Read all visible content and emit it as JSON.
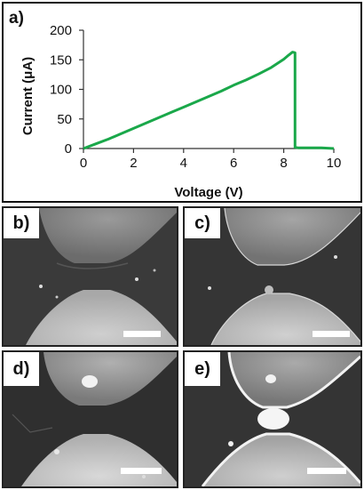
{
  "panels": {
    "a": "a)",
    "b": "b)",
    "c": "c)",
    "d": "d)",
    "e": "e)"
  },
  "chart_data": {
    "type": "line",
    "title": "",
    "xlabel": "Voltage (V)",
    "ylabel": "Current (μA)",
    "xlim": [
      0,
      10
    ],
    "ylim": [
      0,
      200
    ],
    "xticks": [
      0,
      2,
      4,
      6,
      8,
      10
    ],
    "yticks": [
      0,
      50,
      100,
      150,
      200
    ],
    "grid": false,
    "legend": "none",
    "series": [
      {
        "color": "#1aa84a",
        "x": [
          0,
          0.5,
          1,
          1.5,
          2,
          2.5,
          3,
          3.5,
          4,
          4.5,
          5,
          5.5,
          6,
          6.5,
          7,
          7.5,
          8,
          8.2,
          8.35,
          8.45,
          8.45,
          8.6,
          9,
          9.5,
          10
        ],
        "y": [
          0,
          8,
          16,
          25,
          34,
          43,
          52,
          61,
          70,
          79,
          88,
          97,
          107,
          116,
          126,
          137,
          151,
          158,
          163,
          162,
          2,
          1,
          1,
          1,
          0
        ]
      }
    ]
  }
}
